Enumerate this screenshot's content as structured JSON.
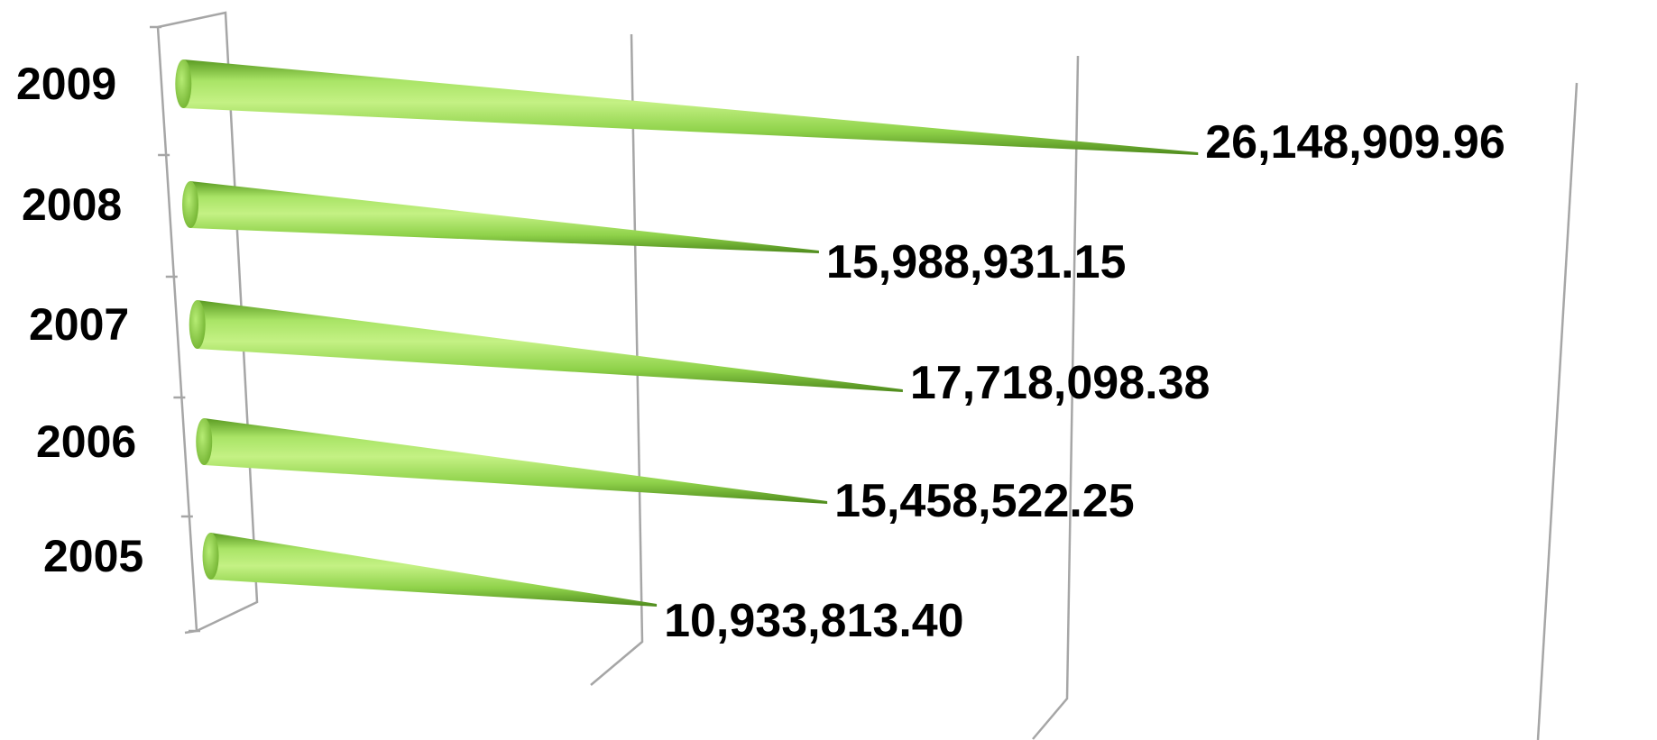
{
  "chart_data": {
    "type": "bar",
    "orientation": "horizontal",
    "style": "3d-cone",
    "categories": [
      "2009",
      "2008",
      "2007",
      "2006",
      "2005"
    ],
    "values": [
      26148909.96,
      15988931.15,
      17718098.38,
      15458522.25,
      10933813.4
    ],
    "value_labels": [
      "26,148,909.96",
      "15,988,931.15",
      "17,718,098.38",
      "15,458,522.25",
      "10,933,813.40"
    ],
    "title": "",
    "xlabel": "",
    "ylabel": "",
    "xlim": [
      0,
      30000000
    ],
    "grid": true,
    "legend": "none",
    "colors": {
      "cone_light": "#b6ec74",
      "cone_mid": "#8fd24a",
      "cone_dark": "#5a9a22",
      "gridline": "#a6a6a6"
    }
  }
}
